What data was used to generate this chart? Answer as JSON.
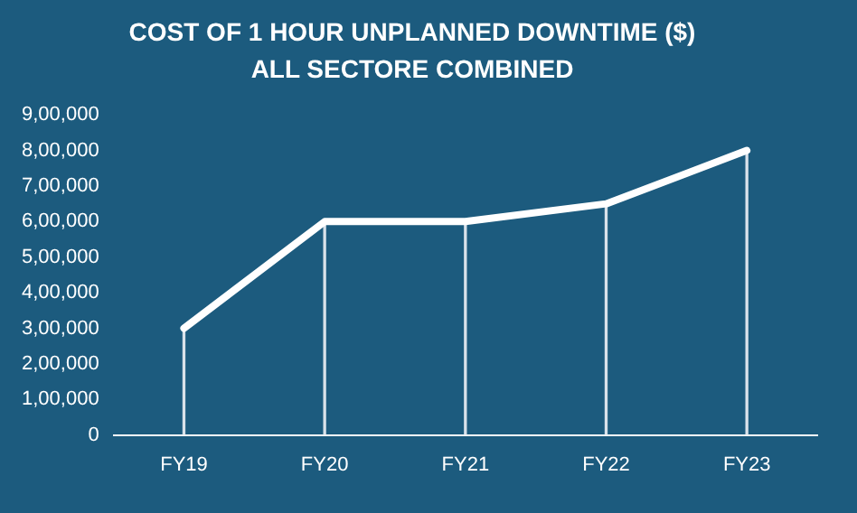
{
  "chart_data": {
    "type": "line",
    "title": "COST OF 1 HOUR UNPLANNED DOWNTIME ($)",
    "subtitle": "ALL SECTORE COMBINED",
    "categories": [
      "FY19",
      "FY20",
      "FY21",
      "FY22",
      "FY23"
    ],
    "series": [
      {
        "type": "bar",
        "color": "#d9e2ea",
        "values": [
          300000,
          600000,
          600000,
          650000,
          800000
        ]
      },
      {
        "color": "#ffffff",
        "values": [
          300000,
          600000,
          600000,
          650000,
          800000
        ]
      }
    ],
    "ylim": [
      0,
      900000
    ],
    "yticks": [
      {
        "value": 0,
        "label": "0"
      },
      {
        "value": 100000,
        "label": "1,00,000"
      },
      {
        "value": 200000,
        "label": "2,00,000"
      },
      {
        "value": 300000,
        "label": "3,00,000"
      },
      {
        "value": 400000,
        "label": "4,00,000"
      },
      {
        "value": 500000,
        "label": "5,00,000"
      },
      {
        "value": 600000,
        "label": "6,00,000"
      },
      {
        "value": 700000,
        "label": "7,00,000"
      },
      {
        "value": 800000,
        "label": "8,00,000"
      },
      {
        "value": 900000,
        "label": "9,00,000"
      }
    ],
    "grid": false,
    "legend": false,
    "marker": "none",
    "line_style": "solid"
  }
}
